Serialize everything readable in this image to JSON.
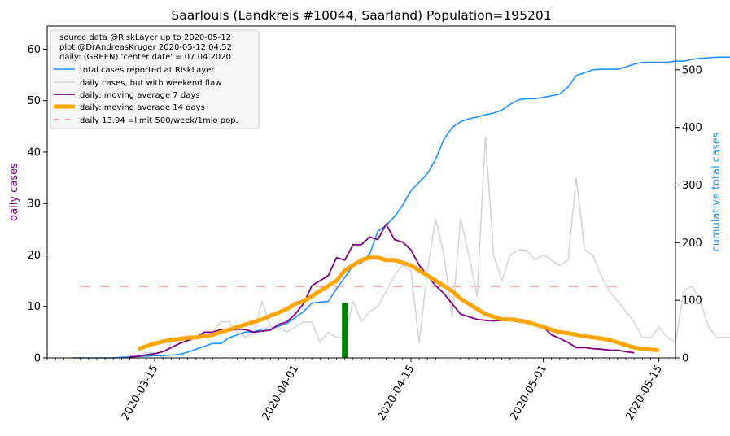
{
  "chart_data": {
    "type": "line",
    "title": "Saarlouis (Landkreis #10044, Saarland) Population=195201",
    "ylabel_left": "daily cases",
    "ylabel_right": "cumulative total cases",
    "ylim_left": [
      0,
      64.5
    ],
    "ylim_right": [
      0,
      576
    ],
    "yticks_left": [
      0,
      10,
      20,
      30,
      40,
      50,
      60
    ],
    "yticks_right": [
      0,
      100,
      200,
      300,
      400,
      500
    ],
    "x_range": [
      "2020-03-02",
      "2020-05-17"
    ],
    "x_ticks": [
      "2020-03-15",
      "2020-04-01",
      "2020-04-15",
      "2020-05-01",
      "2020-05-15"
    ],
    "legend": {
      "info_lines": [
        "source data @RiskLayer up to 2020-05-12",
        "plot @DrAndreasKruger 2020-05-12 04:52",
        "daily: (GREEN) 'center date' = 07.04.2020"
      ],
      "placement": "upper-left"
    },
    "colors": {
      "total": "#1e90ff",
      "daily": "#d3d3d3",
      "ma7": "#800080",
      "ma14": "#ffa500",
      "limit": "#f08080",
      "center": "#008000",
      "left_axis_label": "#800080",
      "right_axis_label": "#1e90ff"
    },
    "limit": {
      "name": "daily 13.94 =limit 500/week/1mio pop.",
      "value": 13.94,
      "start": "2020-03-06",
      "end": "2020-05-10"
    },
    "center_date": {
      "date": "2020-04-07",
      "value": 10.7
    },
    "series": [
      {
        "name": "total cases reported at RiskLayer",
        "axis": "right",
        "start": "2020-03-05",
        "values": [
          0,
          0,
          0,
          0,
          0,
          0,
          1,
          2,
          3,
          3,
          4,
          4,
          5,
          6,
          10,
          15,
          20,
          25,
          25,
          35,
          40,
          45,
          45,
          50,
          50,
          55,
          60,
          70,
          80,
          95,
          97,
          98,
          120,
          140,
          160,
          165,
          180,
          220,
          230,
          245,
          265,
          290,
          305,
          320,
          345,
          380,
          400,
          410,
          415,
          418,
          422,
          425,
          430,
          440,
          448,
          450,
          450,
          452,
          455,
          458,
          470,
          490,
          495,
          500,
          501,
          501,
          501,
          505,
          510,
          513,
          513,
          513,
          513,
          515,
          515,
          518,
          520,
          521,
          522,
          522,
          522
        ]
      },
      {
        "name": "daily cases, but with weekend flaw",
        "axis": "left",
        "start": "2020-03-10",
        "values": [
          0,
          0,
          0,
          0,
          1,
          1,
          0,
          3,
          4,
          3,
          4,
          4,
          5,
          7,
          7,
          5,
          4,
          5,
          11,
          6,
          6,
          5,
          6,
          7,
          7,
          3,
          5,
          4,
          4,
          11,
          7,
          9,
          10,
          13,
          16,
          18,
          17,
          3,
          17,
          27,
          20,
          8,
          27,
          20,
          12,
          43,
          20,
          15,
          20,
          21,
          21,
          19,
          20,
          19,
          18,
          19,
          35,
          21,
          20,
          16,
          13,
          11,
          9,
          7,
          4,
          4,
          6,
          4,
          3,
          13,
          14,
          11,
          6,
          4,
          4,
          4,
          3,
          4,
          6,
          9,
          15,
          9,
          7,
          4,
          1,
          1,
          1,
          3,
          5,
          6,
          4,
          3,
          3,
          2,
          2,
          3,
          2,
          1,
          1,
          1,
          0
        ]
      },
      {
        "name": "daily: moving average 7 days",
        "axis": "left",
        "start": "2020-03-12",
        "values": [
          0.2,
          0.3,
          0.6,
          0.8,
          1.2,
          2,
          2.8,
          3.4,
          4,
          5,
          5,
          5.5,
          5.3,
          5.6,
          5.5,
          5,
          5.2,
          5.4,
          6.5,
          7,
          8.5,
          10.5,
          14,
          15,
          16,
          19.5,
          19,
          22,
          22,
          23.5,
          23,
          26,
          23,
          22.5,
          21,
          18,
          16,
          14,
          12.5,
          10.5,
          8.5,
          8,
          7.5,
          7.3,
          7.2,
          7.3,
          7.3,
          7,
          7,
          6.5,
          6,
          4.5,
          3.8,
          3,
          2,
          2,
          1.8,
          1.7,
          1.5,
          1.5,
          1.2,
          1
        ]
      },
      {
        "name": "daily: moving average 14 days",
        "axis": "left",
        "start": "2020-03-13",
        "values": [
          1.7,
          2.3,
          2.8,
          3.2,
          3.5,
          3.7,
          3.9,
          4,
          4.2,
          4.5,
          5,
          5.5,
          6,
          6.5,
          7,
          7.5,
          8.2,
          8.8,
          9.5,
          10.5,
          11,
          12,
          13,
          14,
          15,
          17,
          18,
          19,
          19.5,
          19.5,
          19,
          19,
          18.5,
          18,
          17,
          16,
          15,
          14,
          13,
          11.5,
          10.5,
          9.5,
          8.5,
          8,
          7.5,
          7.5,
          7.3,
          7,
          6.5,
          6,
          5.5,
          5,
          4.8,
          4.5,
          4.2,
          4,
          3.8,
          3.5,
          3,
          2.5,
          2,
          1.8,
          1.6,
          1.5
        ]
      }
    ]
  }
}
